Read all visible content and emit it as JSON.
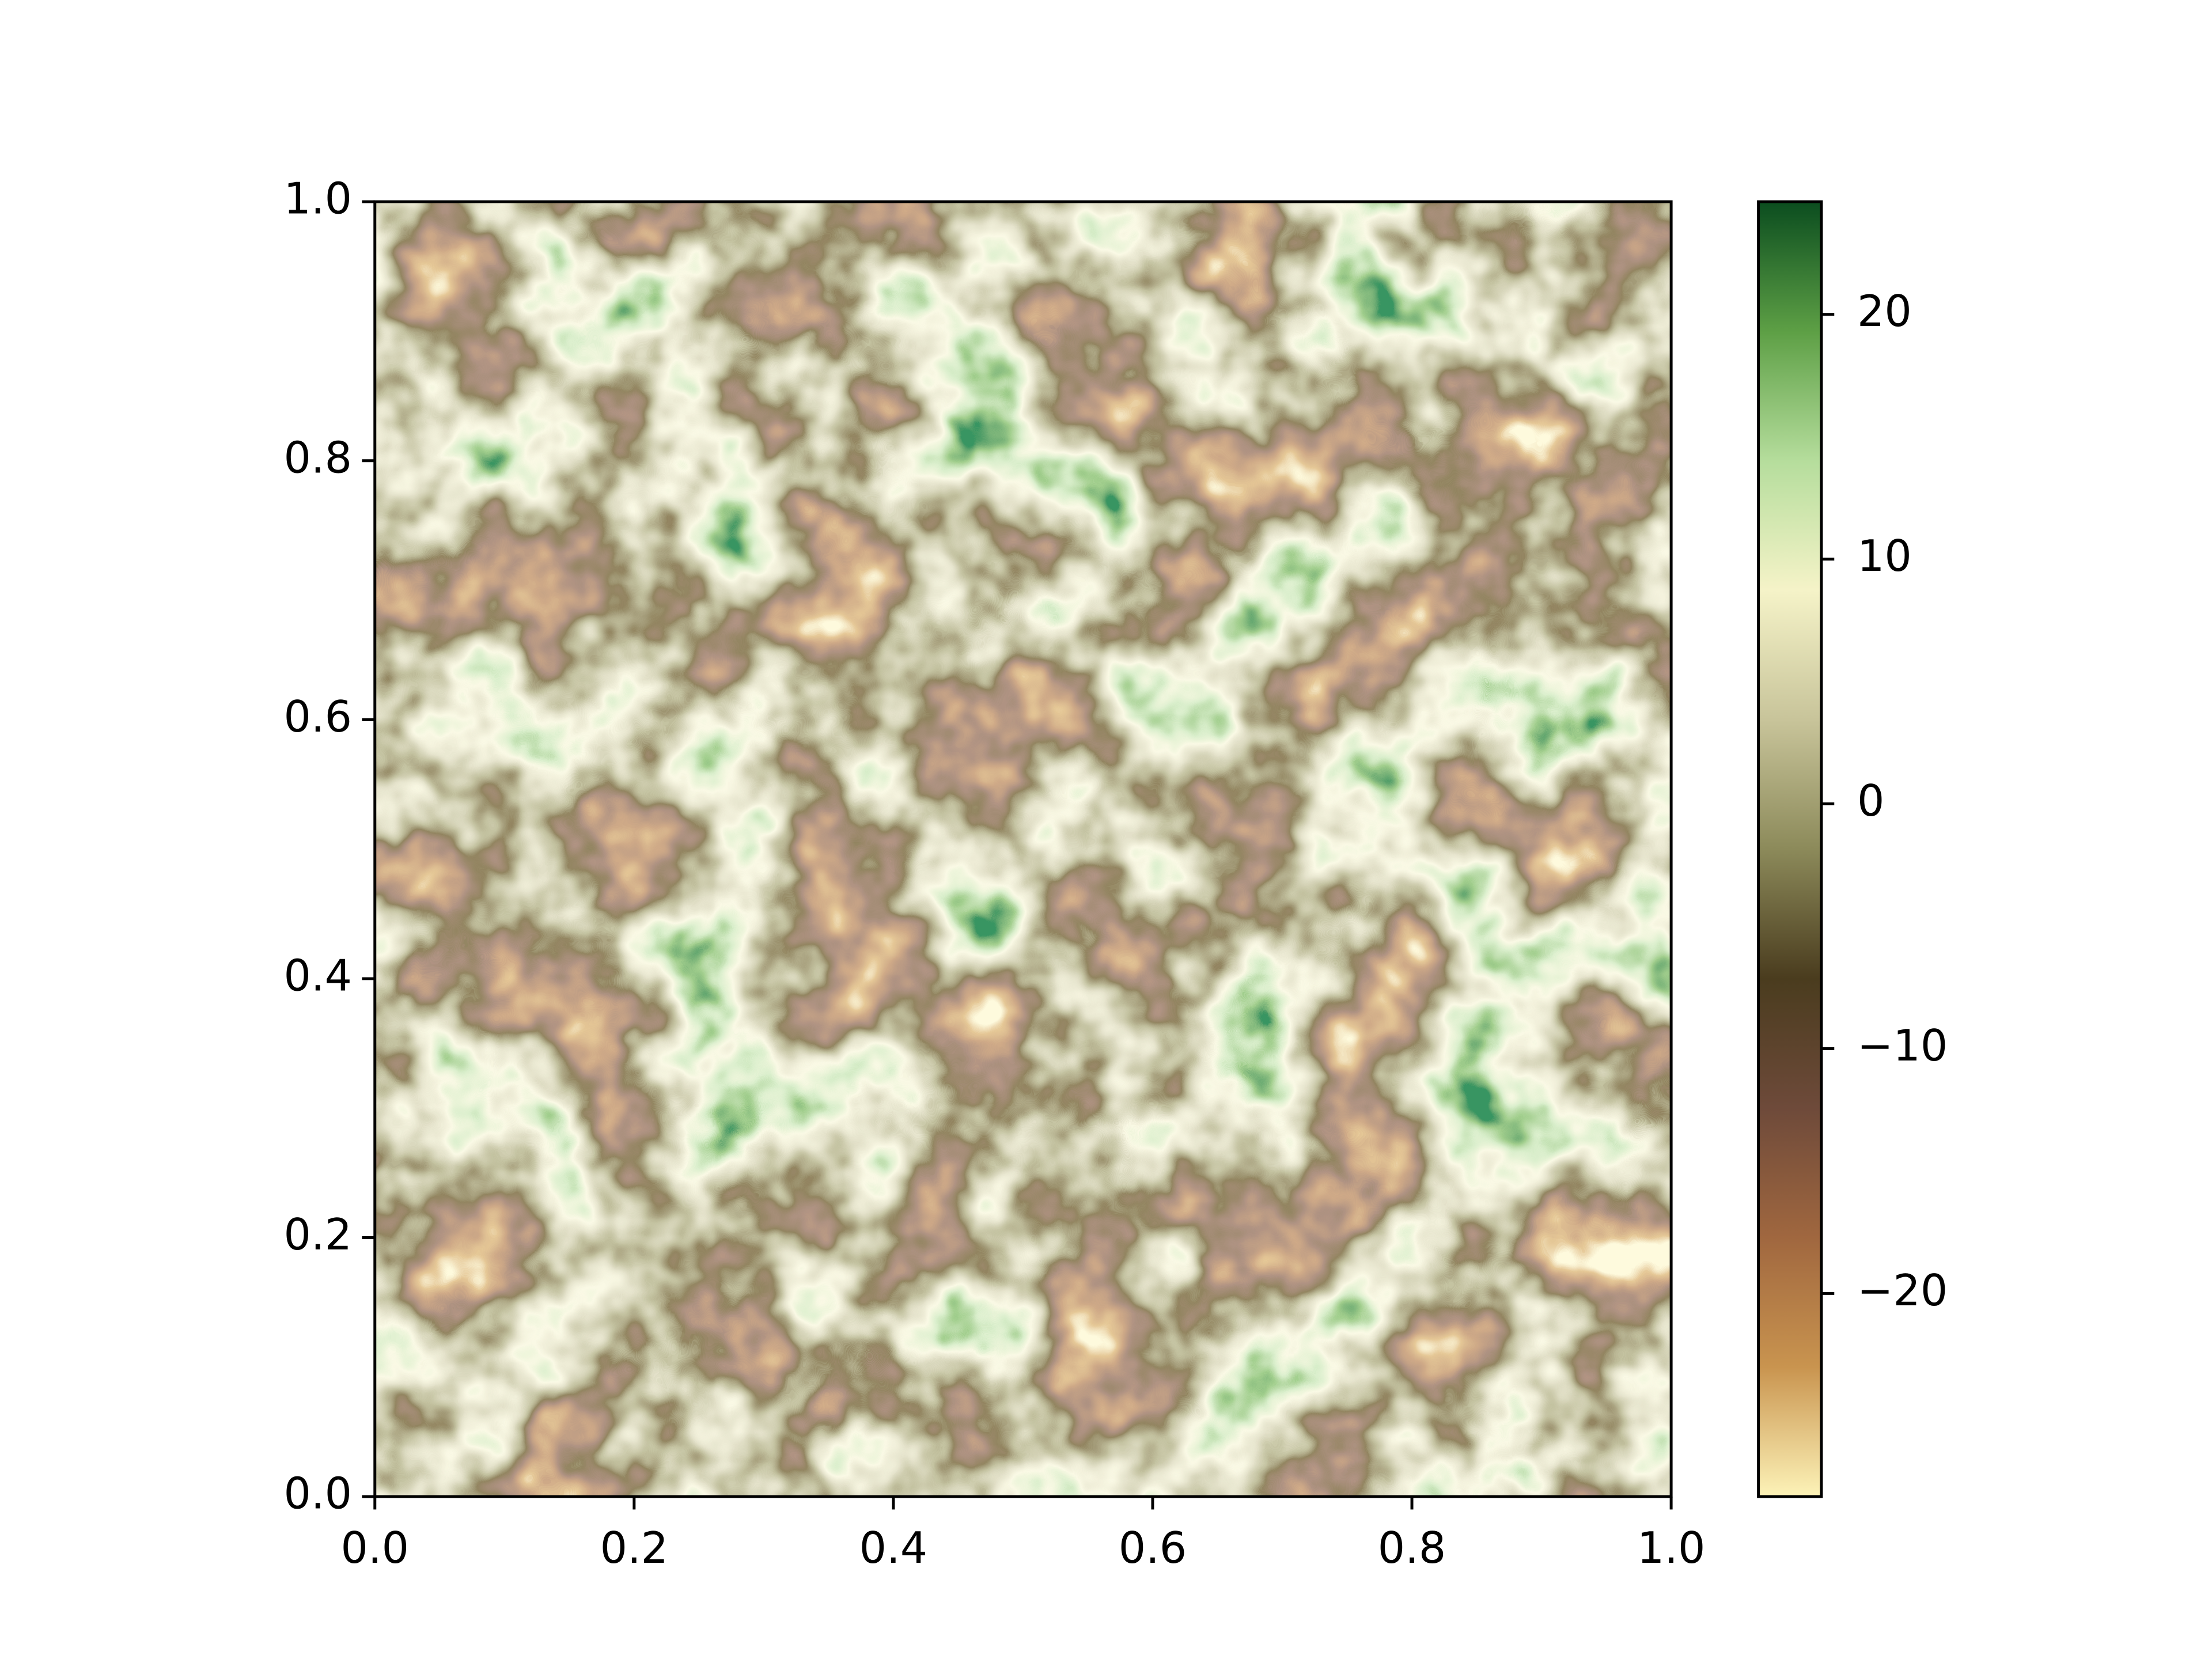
{
  "chart_data": {
    "type": "heatmap",
    "xlim": [
      0,
      1
    ],
    "ylim": [
      0,
      1
    ],
    "xticks": [
      {
        "value": 0,
        "label": "0.0"
      },
      0.2,
      0.4,
      0.6,
      0.8,
      {
        "value": 1,
        "label": "1.0"
      }
    ],
    "yticks": [
      {
        "value": 0,
        "label": "0.0"
      },
      0.2,
      0.4,
      0.6,
      0.8,
      {
        "value": 1,
        "label": "1.0"
      }
    ],
    "clim": [
      -28.3,
      24.6
    ],
    "cticks": [
      {
        "value": -20,
        "label": "−20"
      },
      {
        "value": -10,
        "label": "−10"
      },
      0,
      10,
      20
    ],
    "colormap": [
      "#fdf3b8",
      "#c9944f",
      "#a0673f",
      "#6e4a3a",
      "#4a3c1e",
      "#8c8a5a",
      "#c8c49a",
      "#f5f3c8",
      "#b5dd9c",
      "#5d9f45",
      "#0b4d1f"
    ]
  }
}
